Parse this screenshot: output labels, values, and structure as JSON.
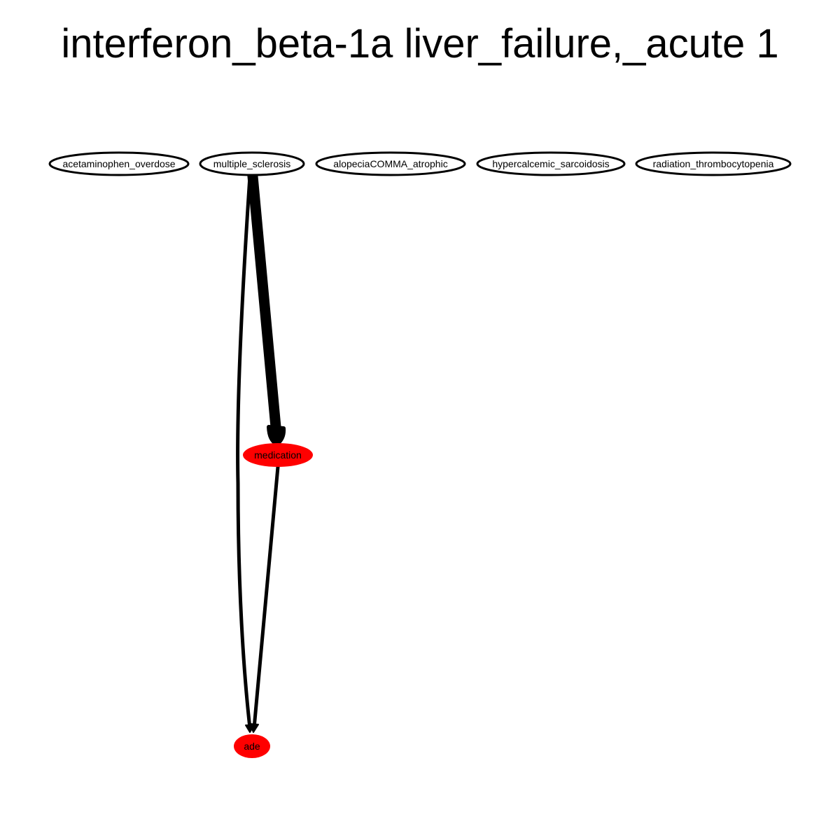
{
  "title": "interferon_beta-1a liver_failure,_acute 1",
  "colors": {
    "outlined_node_fill": "#ffffff",
    "outlined_node_stroke": "#000000",
    "highlighted_node_fill": "#ff0000",
    "edge": "#000000",
    "label": "#000000"
  },
  "nodes": [
    {
      "id": "acetaminophen_overdose",
      "label": "acetaminophen_overdose",
      "style": "outlined"
    },
    {
      "id": "multiple_sclerosis",
      "label": "multiple_sclerosis",
      "style": "outlined"
    },
    {
      "id": "alopeciaCOMMA_atrophic",
      "label": "alopeciaCOMMA_atrophic",
      "style": "outlined"
    },
    {
      "id": "hypercalcemic_sarcoidosis",
      "label": "hypercalcemic_sarcoidosis",
      "style": "outlined"
    },
    {
      "id": "radiation_thrombocytopenia",
      "label": "radiation_thrombocytopenia",
      "style": "outlined"
    },
    {
      "id": "medication",
      "label": "medication",
      "style": "highlighted"
    },
    {
      "id": "ade",
      "label": "ade",
      "style": "highlighted"
    }
  ],
  "edges": [
    {
      "from": "multiple_sclerosis",
      "to": "medication",
      "weight": "heavy"
    },
    {
      "from": "multiple_sclerosis",
      "to": "ade",
      "weight": "normal"
    },
    {
      "from": "medication",
      "to": "ade",
      "weight": "normal"
    }
  ]
}
